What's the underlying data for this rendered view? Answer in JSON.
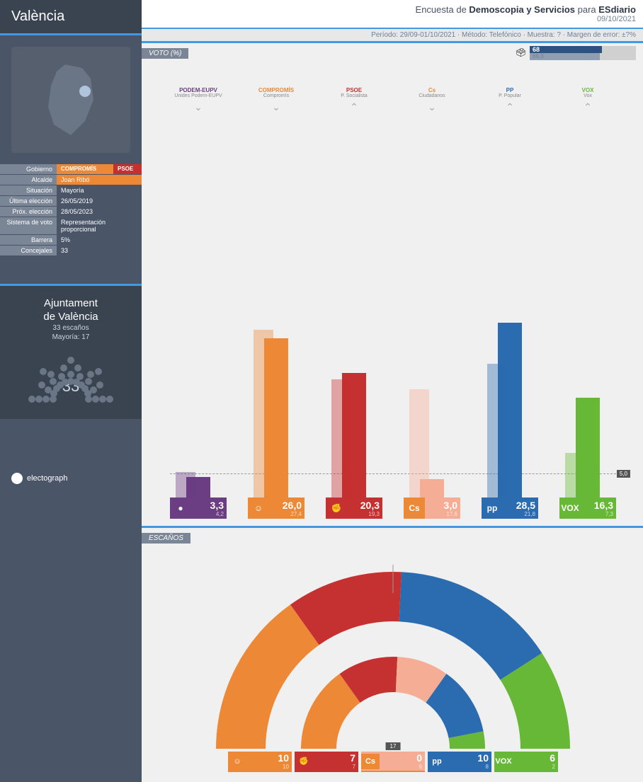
{
  "region": "València",
  "header": {
    "prefix": "Encuesta de ",
    "pollster": "Demoscopia y Servicios",
    "mid": " para ",
    "client": "ESdiario",
    "date": "09/10/2021",
    "meta": "Período: 29/09-01/10/2021 · Método: Telefónico · Muestra: ? · Margen de error: ±?%"
  },
  "info": {
    "gobierno_label": "Gobierno",
    "gobierno_compromis": "COMPROMÍS",
    "gobierno_psoe": "PSOE",
    "alcalde_label": "Alcalde",
    "alcalde": "Joan Ribó",
    "situacion_label": "Situación",
    "situacion": "Mayoría",
    "ultima_label": "Última elección",
    "ultima": "26/05/2019",
    "prox_label": "Próx. elección",
    "prox": "28/05/2023",
    "sistema_label": "Sistema de voto",
    "sistema": "Representación proporcional",
    "barrera_label": "Barrera",
    "barrera": "5%",
    "concejales_label": "Concejales",
    "concejales": "33"
  },
  "parliament": {
    "title1": "Ajuntament",
    "title2": "de València",
    "seats_text": "33 escaños",
    "majority_text": "Mayoría: 17",
    "number": "33"
  },
  "logo": "electograph",
  "voto": {
    "label": "VOTO (%)",
    "turnout": {
      "value": "68",
      "prev": "66,3",
      "bar_pct": 68,
      "prev_pct": 66.3
    },
    "threshold": "5,0",
    "max_scale": 30,
    "parties": [
      {
        "name": "PODEM-EUPV",
        "sub": "Unides Podem-EUPV",
        "color": "#6b3d82",
        "trend": "down",
        "value": "3,3",
        "prev": "4,2",
        "v": 3.3,
        "p": 4.2,
        "logo": "●"
      },
      {
        "name": "COMPROMÍS",
        "sub": "Compromís",
        "color": "#ed8936",
        "trend": "down",
        "value": "26,0",
        "prev": "27,4",
        "v": 26.0,
        "p": 27.4,
        "logo": "☺"
      },
      {
        "name": "PSOE",
        "sub": "P. Socialista",
        "color": "#c53030",
        "trend": "up",
        "value": "20,3",
        "prev": "19,3",
        "v": 20.3,
        "p": 19.3,
        "logo": "✊"
      },
      {
        "name": "Cs",
        "sub": "Ciudadanos",
        "color": "#ed8936",
        "trend": "down",
        "value": "3,0",
        "prev": "17,6",
        "v": 3.0,
        "p": 17.6,
        "logo": "Cs",
        "light": "#f6ad95"
      },
      {
        "name": "PP",
        "sub": "P. Popular",
        "color": "#2b6cb0",
        "trend": "up",
        "value": "28,5",
        "prev": "21,8",
        "v": 28.5,
        "p": 21.8,
        "logo": "pp"
      },
      {
        "name": "VOX",
        "sub": "Vox",
        "color": "#68b838",
        "trend": "up",
        "value": "16,3",
        "prev": "7,3",
        "v": 16.3,
        "p": 7.3,
        "logo": "VOX"
      }
    ]
  },
  "escanos": {
    "label": "ESCAÑOS",
    "majority": "17",
    "outer": [
      {
        "color": "#ed8936",
        "seats": 10
      },
      {
        "color": "#c53030",
        "seats": 7
      },
      {
        "color": "#2b6cb0",
        "seats": 10
      },
      {
        "color": "#68b838",
        "seats": 6
      }
    ],
    "inner": [
      {
        "color": "#ed8936",
        "seats": 10
      },
      {
        "color": "#c53030",
        "seats": 7
      },
      {
        "color": "#f6ad95",
        "seats": 6
      },
      {
        "color": "#2b6cb0",
        "seats": 8
      },
      {
        "color": "#68b838",
        "seats": 2
      }
    ],
    "total": 33,
    "results": [
      {
        "logo": "☺",
        "color": "#ed8936",
        "value": "10",
        "prev": "10"
      },
      {
        "logo": "✊",
        "color": "#c53030",
        "value": "7",
        "prev": "7"
      },
      {
        "logo": "Cs",
        "color": "#ed8936",
        "value": "0",
        "prev": "6",
        "light": "#f6ad95"
      },
      {
        "logo": "pp",
        "color": "#2b6cb0",
        "value": "10",
        "prev": "8"
      },
      {
        "logo": "VOX",
        "color": "#68b838",
        "value": "6",
        "prev": "2"
      }
    ]
  }
}
